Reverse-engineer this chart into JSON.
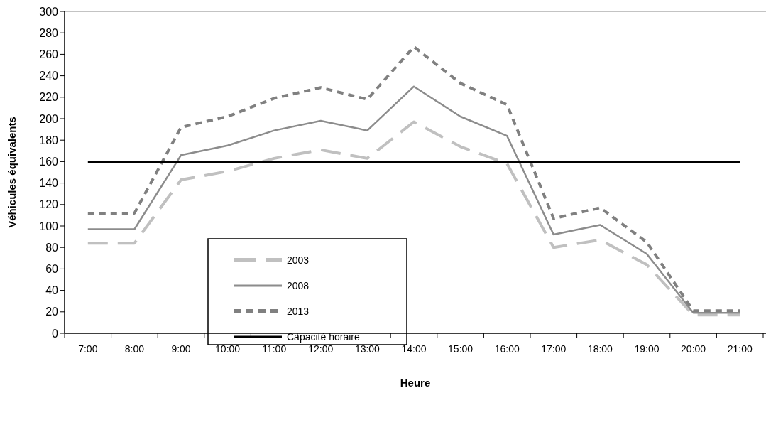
{
  "chart_data": {
    "type": "line",
    "xlabel": "Heure",
    "ylabel": "Véhicules équivalents",
    "categories": [
      "7:00",
      "8:00",
      "9:00",
      "10:00",
      "11:00",
      "12:00",
      "13:00",
      "14:00",
      "15:00",
      "16:00",
      "17:00",
      "18:00",
      "19:00",
      "20:00",
      "21:00"
    ],
    "series": [
      {
        "name": "2003",
        "color": "#c0c0c0",
        "line_style": "dashed",
        "values": [
          84,
          84,
          143,
          151,
          163,
          171,
          163,
          197,
          174,
          158,
          80,
          87,
          64,
          17,
          17
        ]
      },
      {
        "name": "2008",
        "color": "#8c8c8c",
        "line_style": "solid",
        "values": [
          97,
          97,
          166,
          175,
          189,
          198,
          189,
          230,
          202,
          184,
          92,
          101,
          74,
          19,
          19
        ]
      },
      {
        "name": "2013",
        "color": "#808080",
        "line_style": "dotted",
        "values": [
          112,
          112,
          192,
          202,
          219,
          229,
          218,
          267,
          233,
          213,
          107,
          117,
          85,
          21,
          21
        ]
      },
      {
        "name": "Capacité horaire",
        "color": "#000000",
        "line_style": "solid",
        "values": [
          160,
          160,
          160,
          160,
          160,
          160,
          160,
          160,
          160,
          160,
          160,
          160,
          160,
          160,
          160
        ]
      }
    ],
    "ylim": [
      0,
      300
    ],
    "yticks": [
      0,
      20,
      40,
      60,
      80,
      100,
      120,
      140,
      160,
      180,
      200,
      220,
      240,
      260,
      280,
      300
    ],
    "grid": false,
    "legend": "bottom left",
    "marker": "none"
  }
}
